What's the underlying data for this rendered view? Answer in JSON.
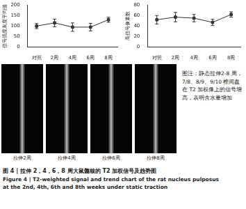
{
  "chart_data": [
    {
      "type": "line",
      "y_label": "信号强度灰度平均值",
      "categories": [
        "对照",
        "2周",
        "4周",
        "6周",
        "8周"
      ],
      "values": [
        100,
        115,
        95,
        95,
        130
      ],
      "errors": [
        12,
        18,
        20,
        18,
        12
      ],
      "color": "#333333",
      "marker": "rect",
      "ylim": [
        0,
        200
      ],
      "yticks": [
        0,
        50,
        100,
        150,
        200
      ],
      "grid": false
    },
    {
      "type": "line",
      "y_label": "高信号像素数",
      "categories": [
        "对照",
        "2周",
        "4周",
        "6周",
        "8周"
      ],
      "values": [
        52,
        57,
        55,
        47,
        62
      ],
      "errors": [
        8,
        9,
        7,
        6,
        5
      ],
      "color": "#333333",
      "marker": "rect",
      "ylim": [
        0,
        80
      ],
      "yticks": [
        0,
        20,
        40,
        60,
        80
      ],
      "grid": false
    }
  ],
  "images": [
    {
      "label": "拉伸2周"
    },
    {
      "label": "拉伸4周"
    },
    {
      "label": "拉伸6周"
    },
    {
      "label": "拉伸8周"
    }
  ],
  "note": "图注：静态拉伸2-8 周，7/8、8/9、9/10 椎间盘在 T2 加权像上的信号增高，表明含水量增加",
  "caption": {
    "zh": "图 4 | 拉伸 2，4，6，8 周大鼠髓核的 T2 加权信号及趋势图",
    "en": [
      "Figure 4 | T2-weighted signal and trend chart of the rat nucleus pulposus",
      "at the 2nd, 4th, 6th and 8th weeks under static traction"
    ]
  }
}
